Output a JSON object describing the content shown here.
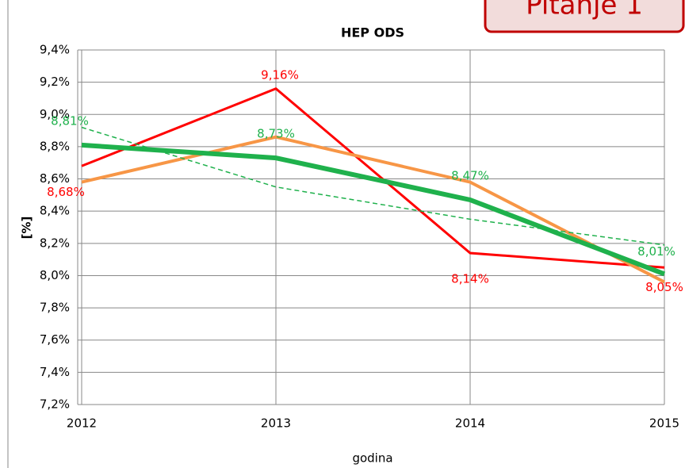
{
  "chart_data": {
    "type": "line",
    "title": "HEP ODS",
    "ylabel": "[%]",
    "xlabel": "godina",
    "categories": [
      "2012",
      "2013",
      "2014",
      "2015"
    ],
    "series": [
      {
        "color": "#ff0000",
        "width": 3,
        "values": [
          8.68,
          9.16,
          8.14,
          8.05
        ],
        "value_labels": [
          "8,68%",
          "9,16%",
          "8,14%",
          "8,05%"
        ]
      },
      {
        "color": "#f79646",
        "width": 4,
        "values": [
          8.58,
          8.86,
          8.58,
          7.96
        ]
      },
      {
        "color": "#1fb14c",
        "width": 6,
        "values": [
          8.81,
          8.73,
          8.47,
          8.01
        ],
        "value_labels": [
          "8,81%",
          "8,73%",
          "8,47%",
          "8,01%"
        ]
      },
      {
        "color": "#1fb14c",
        "width": 1.5,
        "dashed": true,
        "values": [
          8.92,
          8.55,
          8.35,
          8.19
        ]
      }
    ],
    "ylim": [
      7.2,
      9.4
    ],
    "yticks": [
      {
        "value": 7.2,
        "label": "7,2%"
      },
      {
        "value": 7.4,
        "label": "7,4%"
      },
      {
        "value": 7.6,
        "label": "7,6%"
      },
      {
        "value": 7.8,
        "label": "7,8%"
      },
      {
        "value": 8.0,
        "label": "8,0%"
      },
      {
        "value": 8.2,
        "label": "8,2%"
      },
      {
        "value": 8.4,
        "label": "8,4%"
      },
      {
        "value": 8.6,
        "label": "8,6%"
      },
      {
        "value": 8.8,
        "label": "8,8%"
      },
      {
        "value": 9.0,
        "label": "9,0%"
      },
      {
        "value": 9.2,
        "label": "9,2%"
      },
      {
        "value": 9.4,
        "label": "9,4%"
      }
    ],
    "grid": true,
    "annotation": "Pitanje 1"
  }
}
